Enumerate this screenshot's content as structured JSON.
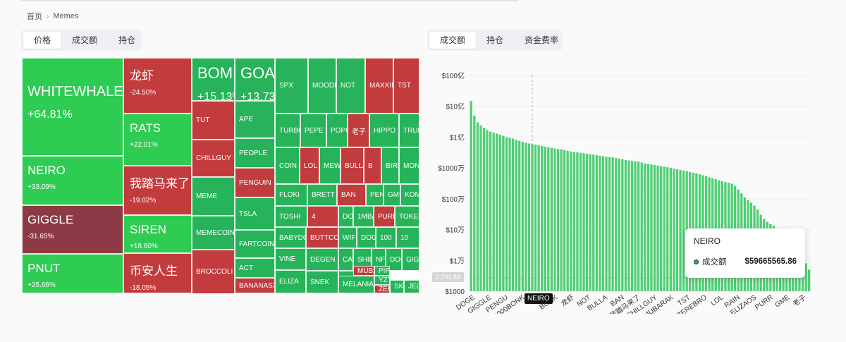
{
  "breadcrumb": {
    "home": "首页",
    "separator": "›",
    "current": "Memes"
  },
  "left_tabs": [
    {
      "label": "价格",
      "active": true
    },
    {
      "label": "成交额",
      "active": false
    },
    {
      "label": "持仓",
      "active": false
    }
  ],
  "right_tabs": [
    {
      "label": "成交额",
      "active": true
    },
    {
      "label": "持仓",
      "active": false
    },
    {
      "label": "资金费率",
      "active": false
    }
  ],
  "colors": {
    "up": "#27b35a",
    "up_bright": "#2ecc52",
    "down": "#c23b3d",
    "down_deep": "#8e3a46",
    "bar": "#4ecf73"
  },
  "treemap": [
    {
      "name": "WHITEWHALE",
      "change": "+64.81%",
      "trend": "up_bright"
    },
    {
      "name": "NEIRO",
      "change": "+33.09%",
      "trend": "up_bright"
    },
    {
      "name": "GIGGLE",
      "change": "-31.65%",
      "trend": "down_deep"
    },
    {
      "name": "PNUT",
      "change": "+25.66%",
      "trend": "up_bright"
    },
    {
      "name": "龙虾",
      "change": "-24.50%",
      "trend": "down"
    },
    {
      "name": "RATS",
      "change": "+22.01%",
      "trend": "up_bright"
    },
    {
      "name": "我踏马来了",
      "change": "-19.02%",
      "trend": "down"
    },
    {
      "name": "SIREN",
      "change": "+18.60%",
      "trend": "up_bright"
    },
    {
      "name": "币安人生",
      "change": "-18.05%",
      "trend": "down"
    },
    {
      "name": "BOME",
      "change": "+15.13%",
      "trend": "up"
    },
    {
      "name": "GOAT",
      "change": "+13.73%",
      "trend": "up"
    },
    {
      "name": "TUT",
      "change": "",
      "trend": "down"
    },
    {
      "name": "CHILLGUY",
      "change": "",
      "trend": "down"
    },
    {
      "name": "MEME",
      "change": "",
      "trend": "up"
    },
    {
      "name": "MEMECOIN",
      "change": "",
      "trend": "up"
    },
    {
      "name": "BROCCOLI",
      "change": "",
      "trend": "down"
    },
    {
      "name": "APE",
      "change": "",
      "trend": "up"
    },
    {
      "name": "PEOPLE",
      "change": "",
      "trend": "up"
    },
    {
      "name": "PENGUIN",
      "change": "",
      "trend": "down"
    },
    {
      "name": "TSLA",
      "change": "",
      "trend": "up"
    },
    {
      "name": "FARTCOIN",
      "change": "",
      "trend": "up"
    },
    {
      "name": "ACT",
      "change": "",
      "trend": "up"
    },
    {
      "name": "BANANAS31",
      "change": "",
      "trend": "down"
    },
    {
      "name": "SPX",
      "change": "",
      "trend": "up"
    },
    {
      "name": "MOODENG",
      "change": "",
      "trend": "up"
    },
    {
      "name": "NOT",
      "change": "",
      "trend": "up"
    },
    {
      "name": "MAXXING",
      "change": "",
      "trend": "down"
    },
    {
      "name": "TST",
      "change": "",
      "trend": "down"
    },
    {
      "name": "TURBO",
      "change": "",
      "trend": "up"
    },
    {
      "name": "PEPE",
      "change": "",
      "trend": "up"
    },
    {
      "name": "POPCAT",
      "change": "",
      "trend": "up"
    },
    {
      "name": "老子",
      "change": "",
      "trend": "down"
    },
    {
      "name": "HIPPO",
      "change": "",
      "trend": "up"
    },
    {
      "name": "TRUMP",
      "change": "",
      "trend": "up"
    },
    {
      "name": "COIN",
      "change": "",
      "trend": "up"
    },
    {
      "name": "LOL",
      "change": "",
      "trend": "down"
    },
    {
      "name": "MEW",
      "change": "",
      "trend": "up"
    },
    {
      "name": "BULLA",
      "change": "",
      "trend": "down"
    },
    {
      "name": "B",
      "change": "",
      "trend": "down"
    },
    {
      "name": "BIRB",
      "change": "",
      "trend": "up"
    },
    {
      "name": "MON",
      "change": "",
      "trend": "up"
    },
    {
      "name": "FLOKI",
      "change": "",
      "trend": "up"
    },
    {
      "name": "BRETT",
      "change": "",
      "trend": "up"
    },
    {
      "name": "BAN",
      "change": "",
      "trend": "down"
    },
    {
      "name": "PENDLE",
      "change": "",
      "trend": "up"
    },
    {
      "name": "GME",
      "change": "",
      "trend": "up"
    },
    {
      "name": "KOMA",
      "change": "",
      "trend": "up"
    },
    {
      "name": "TOSHI",
      "change": "",
      "trend": "up"
    },
    {
      "name": "4",
      "change": "",
      "trend": "down"
    },
    {
      "name": "DOGS",
      "change": "",
      "trend": "up"
    },
    {
      "name": "1MBABYDOGE",
      "change": "",
      "trend": "up"
    },
    {
      "name": "PURR",
      "change": "",
      "trend": "down"
    },
    {
      "name": "TOKEN",
      "change": "",
      "trend": "up"
    },
    {
      "name": "BABYDOGE",
      "change": "",
      "trend": "up"
    },
    {
      "name": "BUTTCOIN",
      "change": "",
      "trend": "down"
    },
    {
      "name": "WIF",
      "change": "",
      "trend": "up"
    },
    {
      "name": "DOG",
      "change": "",
      "trend": "up"
    },
    {
      "name": "100",
      "change": "",
      "trend": "up"
    },
    {
      "name": "10",
      "change": "",
      "trend": "up"
    },
    {
      "name": "VINE",
      "change": "",
      "trend": "up"
    },
    {
      "name": "DEGEN",
      "change": "",
      "trend": "up"
    },
    {
      "name": "CAT",
      "change": "",
      "trend": "up"
    },
    {
      "name": "SHIB",
      "change": "",
      "trend": "up"
    },
    {
      "name": "NFP",
      "change": "",
      "trend": "up"
    },
    {
      "name": "DOGE",
      "change": "",
      "trend": "up"
    },
    {
      "name": "GIG",
      "change": "",
      "trend": "up"
    },
    {
      "name": "ELIZA",
      "change": "",
      "trend": "up"
    },
    {
      "name": "SNEK",
      "change": "",
      "trend": "up"
    },
    {
      "name": "AVAAI",
      "change": "",
      "trend": "up"
    },
    {
      "name": "MUBARAK",
      "change": "",
      "trend": "down"
    },
    {
      "name": "PIPPIN",
      "change": "",
      "trend": "up"
    },
    {
      "name": "YZY",
      "change": "",
      "trend": "up"
    },
    {
      "name": "MELANIA",
      "change": "",
      "trend": "up"
    },
    {
      "name": "ZEREBRO",
      "change": "",
      "trend": "down"
    },
    {
      "name": "SKYAI",
      "change": "",
      "trend": "up"
    },
    {
      "name": "JELLY",
      "change": "",
      "trend": "up"
    },
    {
      "name": "RAIN",
      "change": "",
      "trend": "down"
    }
  ],
  "chart_data": {
    "type": "bar",
    "title": "成交额",
    "y_scale": "log",
    "ylim": [
      1000,
      10000000000
    ],
    "y_ticks": [
      "$1000",
      "$1万",
      "$10万",
      "$100万",
      "$1000万",
      "$1亿",
      "$10亿",
      "$100亿"
    ],
    "x_labels": [
      "DOGE",
      "GIGGLE",
      "PENGU",
      "1000BONK",
      "NEIRO",
      "BONK",
      "龙虾",
      "NOT",
      "BULLA",
      "BAN",
      "我踏马来了",
      "CHILLGUY",
      "MUBARAK",
      "TST",
      "ZEREBRO",
      "LOL",
      "RAIN",
      "ELIZAOS",
      "PURR",
      "GME",
      "老子"
    ],
    "hover_category": "NEIRO",
    "crosshair_y_label": "2,701.63",
    "tooltip": {
      "title": "NEIRO",
      "series": "成交额",
      "value": "$59665565.86"
    },
    "values": [
      1500000000,
      500000000,
      300000000,
      240000000,
      200000000,
      170000000,
      150000000,
      140000000,
      130000000,
      120000000,
      110000000,
      100000000,
      95000000,
      90000000,
      82000000,
      76000000,
      70000000,
      65000000,
      62000000,
      59665566,
      57000000,
      55000000,
      52000000,
      49000000,
      47000000,
      45000000,
      43000000,
      41000000,
      40000000,
      38000000,
      36000000,
      34000000,
      33000000,
      32000000,
      31000000,
      30000000,
      29000000,
      28000000,
      27000000,
      26000000,
      25000000,
      24000000,
      23000000,
      22500000,
      22000000,
      21000000,
      20000000,
      19000000,
      18000000,
      17500000,
      17000000,
      16500000,
      16000000,
      15000000,
      14000000,
      13500000,
      13000000,
      12500000,
      12000000,
      11500000,
      11000000,
      10500000,
      10000000,
      9500000,
      9000000,
      8600000,
      8200000,
      7800000,
      7400000,
      7000000,
      6600000,
      6200000,
      5800000,
      5400000,
      5000000,
      4600000,
      4300000,
      4000000,
      3700000,
      3500000,
      3300000,
      3100000,
      2600000,
      2000000,
      1500000,
      1100000,
      900000,
      750000,
      600000,
      450000,
      300000,
      220000,
      180000,
      150000,
      130000,
      110000,
      95000,
      85000,
      75000,
      65000,
      55000,
      45000,
      35000,
      30000,
      8000,
      5000
    ]
  },
  "ui": {
    "y_badge": "2,701.63",
    "x_badge": "NEIRO"
  }
}
